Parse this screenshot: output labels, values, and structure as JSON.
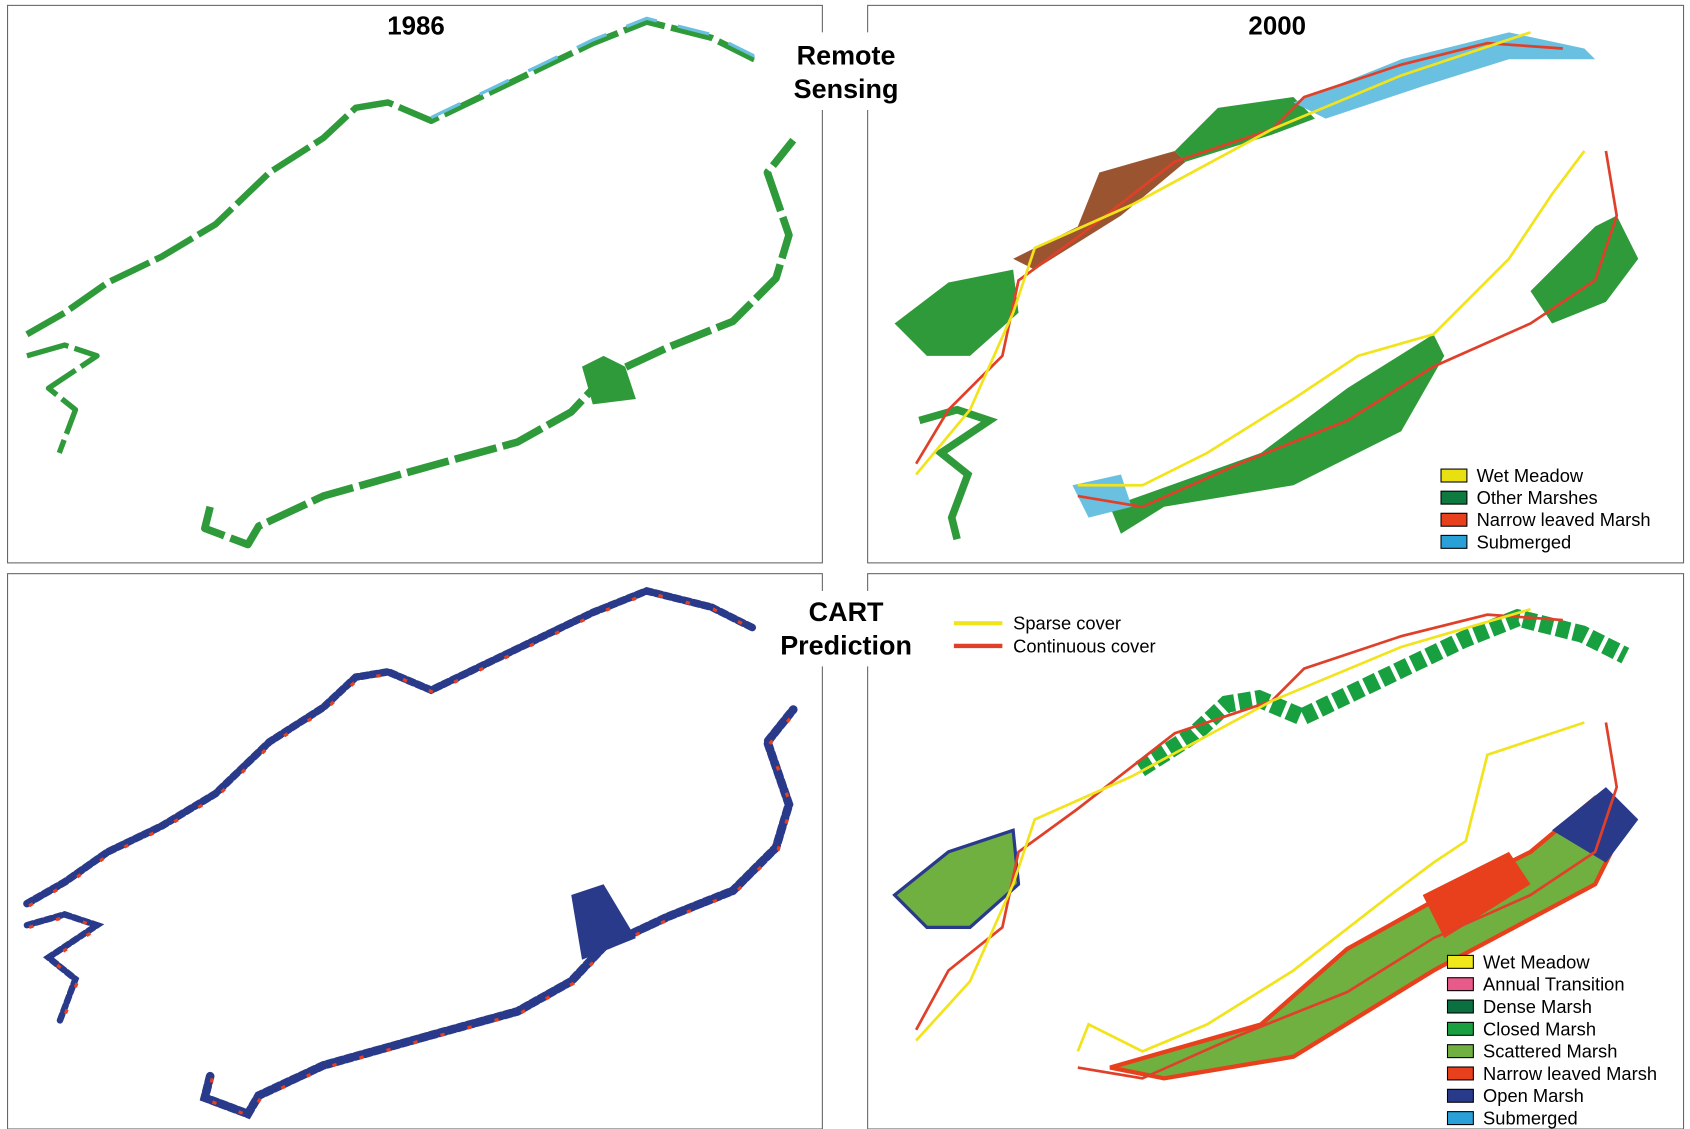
{
  "panels": [
    {
      "title": "1986"
    },
    {
      "title": "2000"
    }
  ],
  "row_labels": [
    {
      "lines": [
        "Remote",
        "Sensing"
      ]
    },
    {
      "lines": [
        "CART",
        "Prediction"
      ]
    }
  ],
  "legends": {
    "remote_sensing": [
      {
        "label": "Wet Meadow",
        "color": "#e8e010"
      },
      {
        "label": "Other Marshes",
        "color": "#0f7a40"
      },
      {
        "label": "Narrow leaved Marsh",
        "color": "#e8401c"
      },
      {
        "label": "Submerged",
        "color": "#2aa0d8"
      }
    ],
    "cover_lines": [
      {
        "label": "Sparse cover",
        "color": "#f2e41c"
      },
      {
        "label": "Continuous cover",
        "color": "#e0402a"
      }
    ],
    "cart": [
      {
        "label": "Wet Meadow",
        "color": "#f0e81a"
      },
      {
        "label": "Annual Transition",
        "color": "#e85a8a"
      },
      {
        "label": "Dense Marsh",
        "color": "#0a7040"
      },
      {
        "label": "Closed Marsh",
        "color": "#18a040"
      },
      {
        "label": "Scattered Marsh",
        "color": "#70b040"
      },
      {
        "label": "Narrow leaved Marsh",
        "color": "#e8401c"
      },
      {
        "label": "Open Marsh",
        "color": "#2a3a8a"
      },
      {
        "label": "Submerged",
        "color": "#2aa0d8"
      }
    ]
  }
}
